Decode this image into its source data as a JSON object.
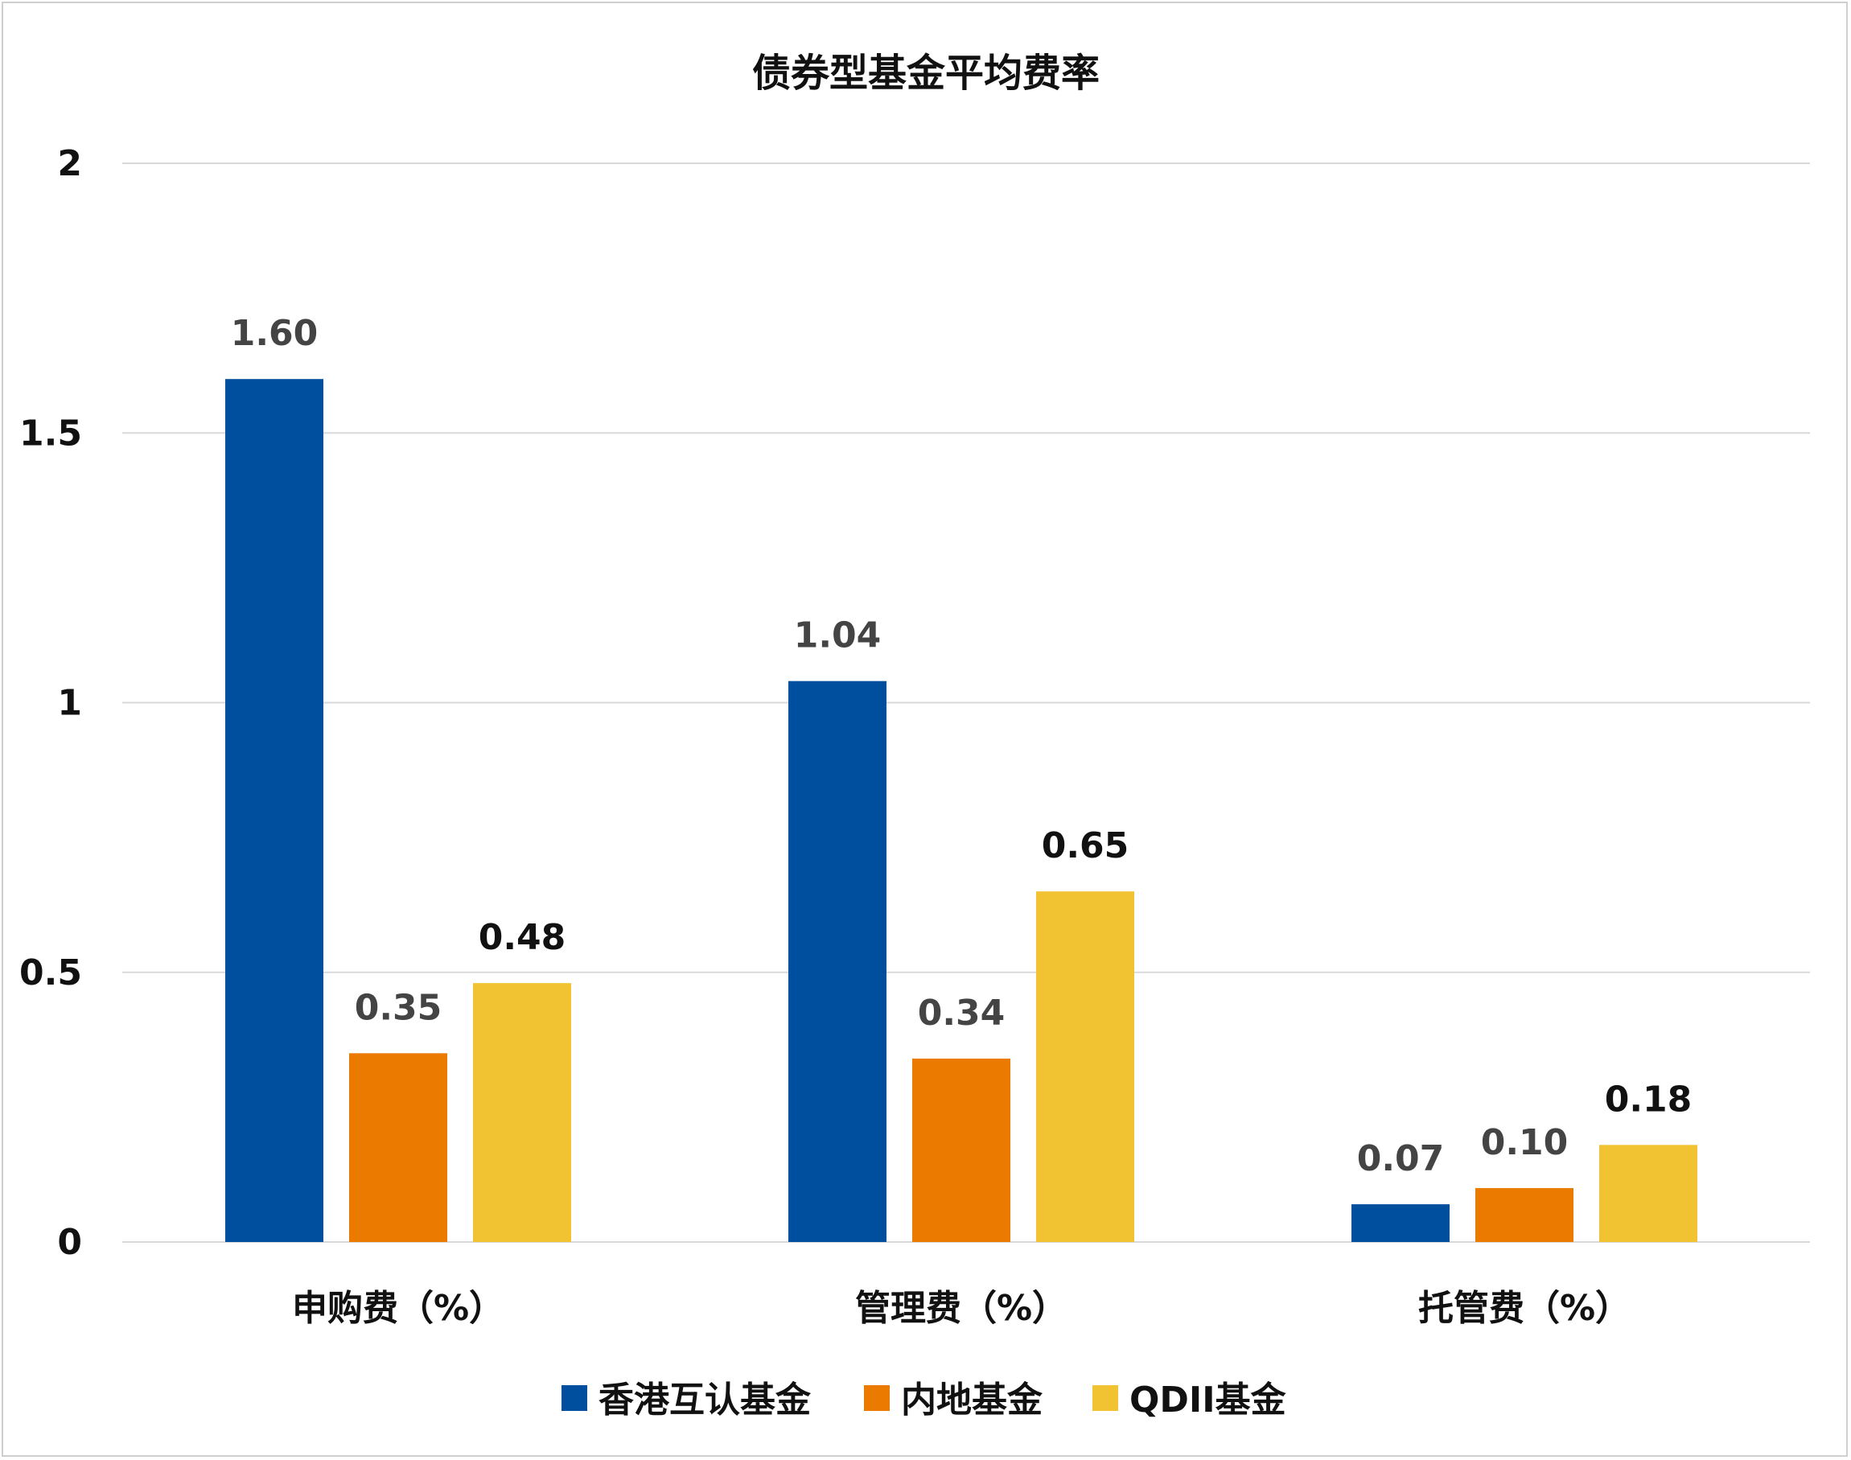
{
  "chart_data": {
    "type": "bar",
    "title": "债券型基金平均费率",
    "xlabel": "",
    "ylabel": "",
    "ylim": [
      0,
      2
    ],
    "yticks": [
      "0",
      "0.5",
      "1",
      "1.5",
      "2"
    ],
    "ytick_values": [
      0,
      0.5,
      1,
      1.5,
      2
    ],
    "grid": true,
    "legend_position": "bottom",
    "categories": [
      "申购费（%）",
      "管理费（%）",
      "托管费（%）"
    ],
    "series": [
      {
        "name": "香港互认基金",
        "color": "#004f9f",
        "label_color": "#444444",
        "values": [
          1.6,
          1.04,
          0.07
        ],
        "labels": [
          "1.60",
          "1.04",
          "0.07"
        ]
      },
      {
        "name": "内地基金",
        "color": "#ea7a00",
        "label_color": "#444444",
        "values": [
          0.35,
          0.34,
          0.1
        ],
        "labels": [
          "0.35",
          "0.34",
          "0.10"
        ]
      },
      {
        "name": "QDII基金",
        "color": "#f1c232",
        "label_color": "#111111",
        "values": [
          0.48,
          0.65,
          0.18
        ],
        "labels": [
          "0.48",
          "0.65",
          "0.18"
        ]
      }
    ]
  }
}
